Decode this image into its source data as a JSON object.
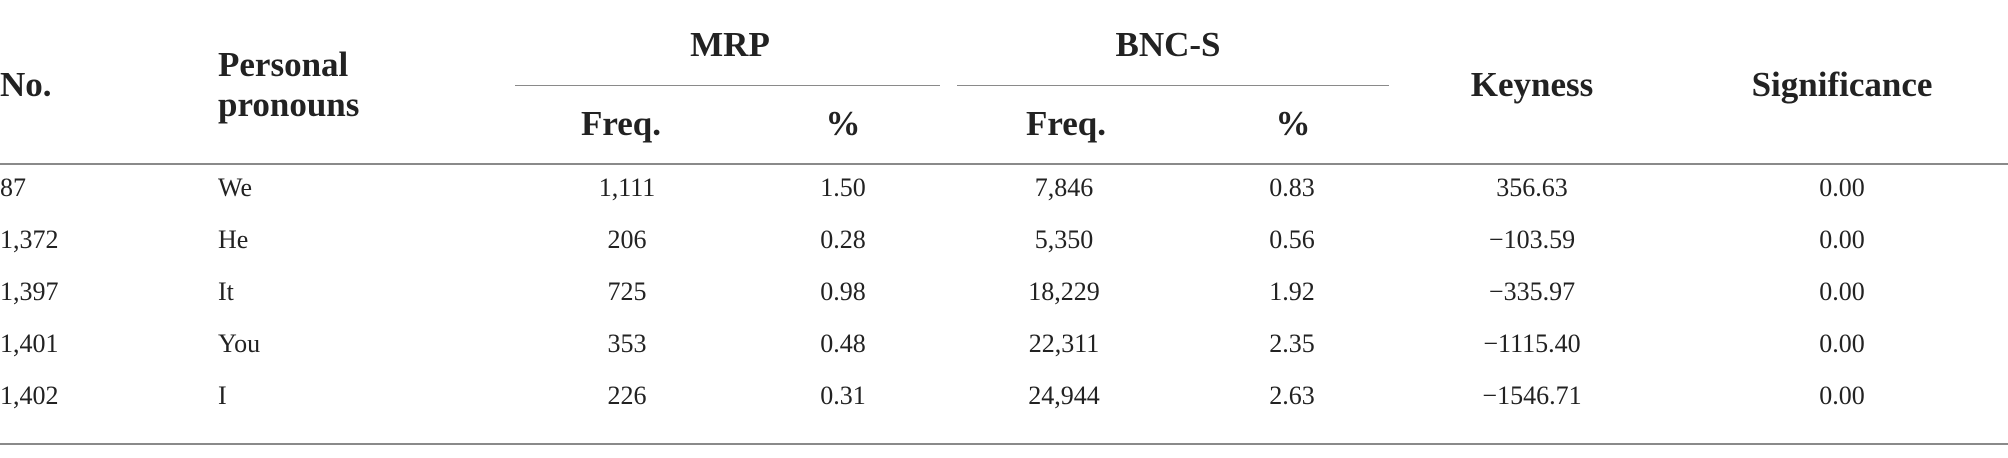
{
  "table": {
    "headers": {
      "no": "No.",
      "pronouns_line1": "Personal",
      "pronouns_line2": "pronouns",
      "group_mrp": "MRP",
      "group_bnc": "BNC-S",
      "freq": "Freq.",
      "pct": "%",
      "keyness": "Keyness",
      "significance": "Significance"
    },
    "rows": [
      {
        "no": "87",
        "pronoun": "We",
        "mrp_freq": "1,111",
        "mrp_pct": "1.50",
        "bnc_freq": "7,846",
        "bnc_pct": "0.83",
        "keyness": "356.63",
        "significance": "0.00"
      },
      {
        "no": "1,372",
        "pronoun": "He",
        "mrp_freq": "206",
        "mrp_pct": "0.28",
        "bnc_freq": "5,350",
        "bnc_pct": "0.56",
        "keyness": "−103.59",
        "significance": "0.00"
      },
      {
        "no": "1,397",
        "pronoun": "It",
        "mrp_freq": "725",
        "mrp_pct": "0.98",
        "bnc_freq": "18,229",
        "bnc_pct": "1.92",
        "keyness": "−335.97",
        "significance": "0.00"
      },
      {
        "no": "1,401",
        "pronoun": "You",
        "mrp_freq": "353",
        "mrp_pct": "0.48",
        "bnc_freq": "22,311",
        "bnc_pct": "2.35",
        "keyness": "−1115.40",
        "significance": "0.00"
      },
      {
        "no": "1,402",
        "pronoun": "I",
        "mrp_freq": "226",
        "mrp_pct": "0.31",
        "bnc_freq": "24,944",
        "bnc_pct": "2.63",
        "keyness": "−1546.71",
        "significance": "0.00"
      }
    ]
  }
}
